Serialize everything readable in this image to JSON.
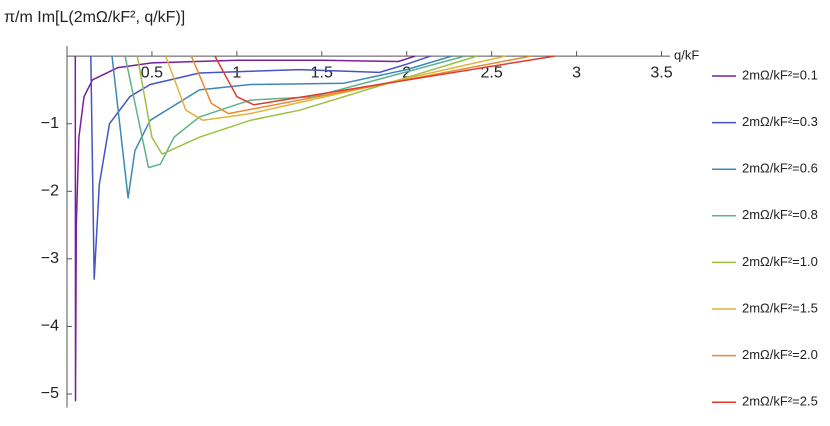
{
  "chart_data": {
    "type": "line",
    "y_label": "π/m Im[L(2mΩ/kF², q/kF)]",
    "x_label": "q/kF",
    "xlim": [
      0,
      3.55
    ],
    "ylim": [
      -5.2,
      0.15
    ],
    "xticks": [
      0.5,
      1.0,
      1.5,
      2.0,
      2.5,
      3.0,
      3.5
    ],
    "yticks": [
      {
        "value": -5,
        "label": "−5"
      },
      {
        "value": -4,
        "label": "−4"
      },
      {
        "value": -3,
        "label": "−3"
      },
      {
        "value": -2,
        "label": "−2"
      },
      {
        "value": -1,
        "label": "−1"
      }
    ],
    "series": [
      {
        "name": "2mΩ/kF²=0.1",
        "color": "#7a1f9c",
        "x": [
          0.049,
          0.05,
          0.055,
          0.07,
          0.1,
          0.15,
          0.3,
          0.5,
          1.0,
          1.5,
          1.95,
          2.0,
          2.049
        ],
        "values": [
          0,
          -5.1,
          -2.5,
          -1.2,
          -0.6,
          -0.35,
          -0.17,
          -0.1,
          -0.06,
          -0.06,
          -0.08,
          -0.04,
          0
        ]
      },
      {
        "name": "2mΩ/kF²=0.3",
        "color": "#4454c4",
        "x": [
          0.14,
          0.16,
          0.19,
          0.25,
          0.37,
          0.49,
          0.78,
          1.37,
          1.84,
          2.0,
          2.14
        ],
        "values": [
          0,
          -3.3,
          -1.9,
          -1.0,
          -0.6,
          -0.42,
          -0.25,
          -0.2,
          -0.24,
          -0.12,
          0
        ]
      },
      {
        "name": "2mΩ/kF²=0.6",
        "color": "#3e88b8",
        "x": [
          0.265,
          0.36,
          0.4,
          0.49,
          0.78,
          1.08,
          1.63,
          2.0,
          2.265
        ],
        "values": [
          0,
          -2.1,
          -1.4,
          -0.95,
          -0.5,
          -0.42,
          -0.4,
          -0.2,
          0
        ]
      },
      {
        "name": "2mΩ/kF²=0.8",
        "color": "#5db38a",
        "x": [
          0.342,
          0.48,
          0.55,
          0.63,
          0.78,
          1.08,
          1.45,
          1.9,
          2.342
        ],
        "values": [
          0,
          -1.65,
          -1.6,
          -1.2,
          -0.9,
          -0.65,
          -0.6,
          -0.3,
          0
        ]
      },
      {
        "name": "2mΩ/kF²=1.0",
        "color": "#9dc045",
        "x": [
          0.414,
          0.5,
          0.56,
          0.78,
          1.08,
          1.37,
          2.414
        ],
        "values": [
          0,
          -1.2,
          -1.45,
          -1.2,
          -0.95,
          -0.8,
          0
        ]
      },
      {
        "name": "2mΩ/kF²=1.5",
        "color": "#e0b43a",
        "x": [
          0.581,
          0.7,
          0.8,
          1.08,
          2.581
        ],
        "values": [
          0,
          -0.8,
          -0.95,
          -0.85,
          0
        ]
      },
      {
        "name": "2mΩ/kF²=2.0",
        "color": "#e88a30",
        "x": [
          0.732,
          0.85,
          0.95,
          2.732
        ],
        "values": [
          0,
          -0.7,
          -0.85,
          0
        ]
      },
      {
        "name": "2mΩ/kF²=2.5",
        "color": "#e03a2c",
        "x": [
          0.871,
          1.0,
          1.1,
          2.871
        ],
        "values": [
          0,
          -0.6,
          -0.72,
          0
        ]
      }
    ]
  }
}
